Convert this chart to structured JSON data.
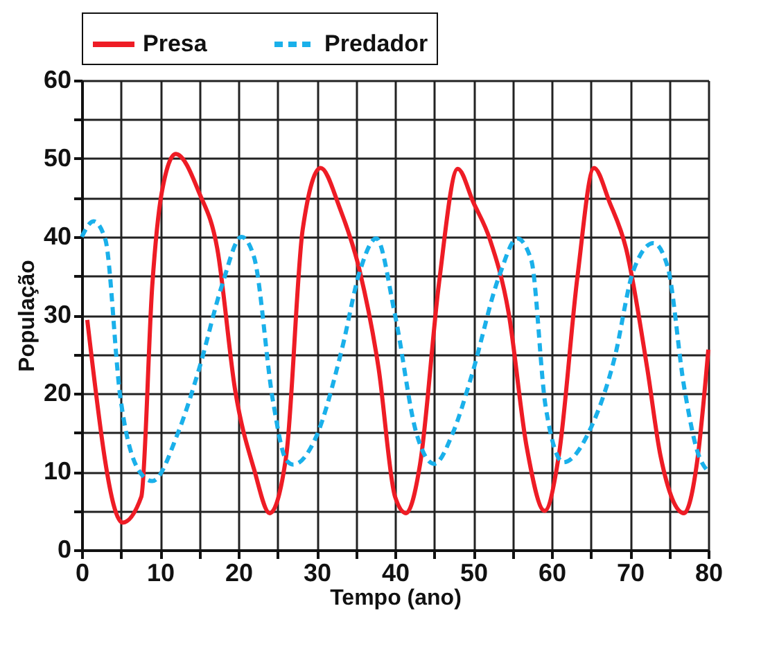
{
  "chart_data": {
    "type": "line",
    "xlabel": "Tempo (ano)",
    "ylabel": "População",
    "xlim": [
      0,
      80
    ],
    "ylim": [
      0,
      60
    ],
    "xticks": [
      0,
      {
        "value": 5,
        "label": null
      },
      10,
      {
        "value": 15,
        "label": null
      },
      20,
      {
        "value": 25,
        "label": null
      },
      30,
      {
        "value": 35,
        "label": null
      },
      40,
      {
        "value": 45,
        "label": null
      },
      50,
      {
        "value": 55,
        "label": null
      },
      60,
      {
        "value": 65,
        "label": null
      },
      70,
      {
        "value": 75,
        "label": null
      },
      80
    ],
    "yticks": [
      0,
      {
        "value": 5,
        "label": null
      },
      10,
      {
        "value": 15,
        "label": null
      },
      20,
      {
        "value": 25,
        "label": null
      },
      30,
      {
        "value": 35,
        "label": null
      },
      40,
      {
        "value": 45,
        "label": null
      },
      50,
      {
        "value": 55,
        "label": null
      },
      60
    ],
    "grid": true,
    "legend": "top",
    "marker": "none",
    "series": [
      {
        "name": "Presa",
        "color": "#ee1c25",
        "line_style": "solid",
        "x": [
          0.7,
          5.2,
          7.6,
          9.0,
          10.2,
          12.0,
          15.0,
          17.3,
          19.6,
          22.0,
          24.0,
          26.1,
          28.2,
          30.5,
          32.9,
          35.5,
          37.9,
          40.0,
          41.4,
          43.2,
          45.6,
          48.0,
          50.0,
          52.1,
          54.5,
          56.8,
          59.1,
          60.9,
          63.3,
          65.4,
          67.4,
          69.5,
          72.2,
          73.9,
          76.9,
          78.6,
          80.0
        ],
        "values": [
          29.4,
          3.5,
          6.8,
          33.8,
          45.6,
          50.6,
          45.6,
          38.5,
          20.3,
          10.3,
          4.7,
          12.0,
          40.9,
          48.8,
          43.8,
          35.6,
          23.2,
          6.8,
          4.7,
          11.0,
          34.0,
          48.7,
          44.4,
          39.7,
          30.3,
          13.2,
          5.0,
          12.0,
          35.0,
          48.8,
          44.4,
          38.5,
          23.2,
          12.0,
          4.7,
          11.5,
          25.6
        ]
      },
      {
        "name": "Predador",
        "color": "#1ab0ea",
        "line_style": "dashed",
        "x": [
          0.0,
          1.5,
          3.0,
          4.9,
          7.6,
          9.0,
          12.3,
          15.0,
          17.9,
          20.4,
          22.0,
          24.4,
          26.1,
          27.0,
          29.9,
          33.2,
          35.5,
          37.6,
          40.0,
          42.7,
          45.0,
          47.4,
          49.7,
          53.3,
          55.6,
          57.4,
          59.2,
          61.5,
          65.0,
          68.0,
          70.4,
          73.0,
          74.8,
          76.9,
          78.6,
          80.0
        ],
        "values": [
          40.0,
          42.0,
          39.7,
          19.7,
          9.7,
          8.8,
          15.0,
          23.2,
          33.8,
          40.0,
          37.4,
          19.1,
          11.5,
          10.9,
          14.4,
          25.6,
          35.6,
          39.8,
          30.0,
          15.0,
          11.0,
          15.0,
          22.0,
          35.0,
          39.8,
          37.0,
          18.5,
          11.2,
          15.6,
          24.4,
          35.6,
          39.2,
          36.2,
          20.9,
          12.6,
          10.0
        ]
      }
    ]
  }
}
